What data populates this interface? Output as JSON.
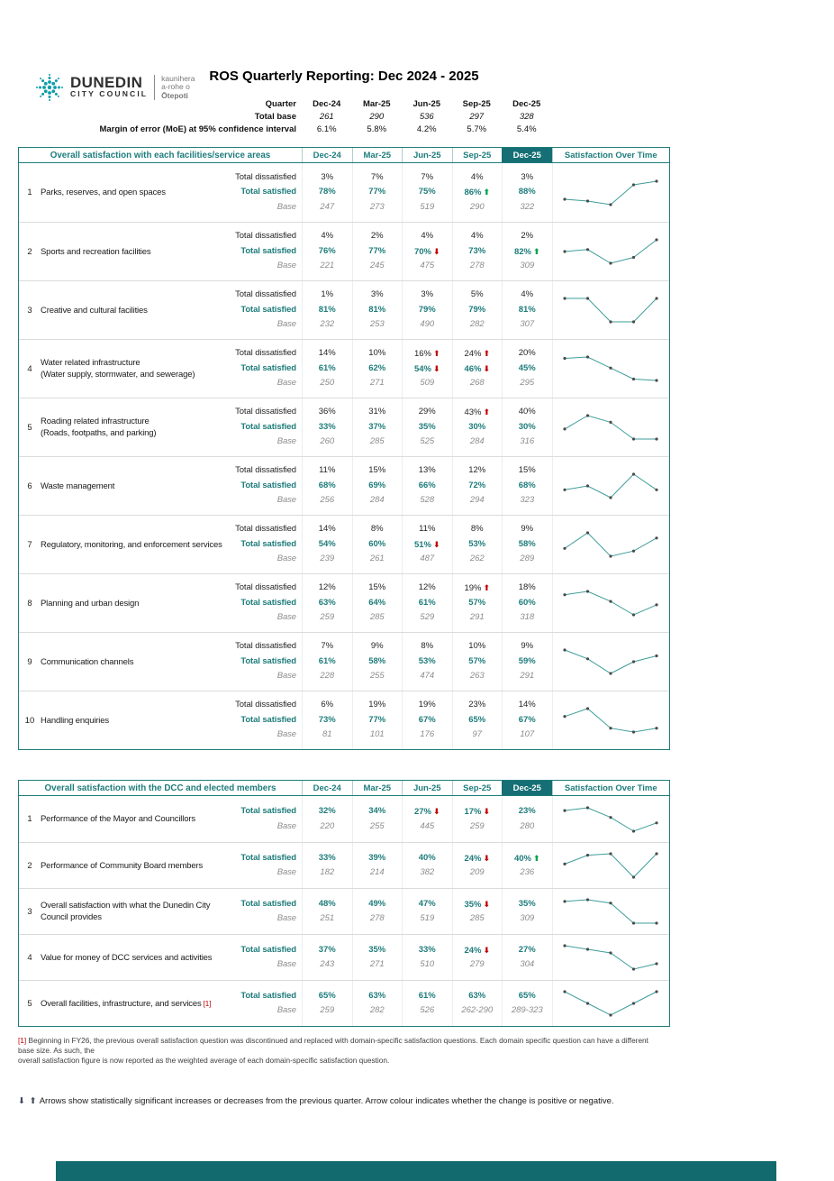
{
  "meta": {
    "title": "ROS Quarterly Reporting: Dec 2024 - 2025"
  },
  "logo": {
    "name_line1": "DUNEDIN",
    "name_line2": "CITY COUNCIL",
    "maori_line1": "kaunihera",
    "maori_line2": "a-rohe o",
    "maori_line3": "Ōtepoti"
  },
  "header_table": {
    "quarter_label": "Quarter",
    "total_base_label": "Total base",
    "moe_label": "Margin of error (MoE) at 95% confidence interval",
    "quarters": [
      "Dec-24",
      "Mar-25",
      "Jun-25",
      "Sep-25",
      "Dec-25"
    ],
    "total_base": [
      "261",
      "290",
      "536",
      "297",
      "328"
    ],
    "moe": [
      "6.1%",
      "5.8%",
      "4.2%",
      "5.7%",
      "5.4%"
    ]
  },
  "labels": {
    "dissatisfied": "Total dissatisfied",
    "satisfied": "Total satisfied",
    "base": "Base",
    "spark_header": "Satisfaction Over Time"
  },
  "table1": {
    "header": "Overall satisfaction with each facilities/service areas",
    "rows": [
      {
        "num": "1",
        "name_lines": [
          "Parks, reserves, and open spaces"
        ],
        "dissatisfied": [
          "3%",
          "7%",
          "7%",
          "4%",
          "3%"
        ],
        "satisfied": [
          "78%",
          "77%",
          "75%",
          "86%",
          "88%"
        ],
        "sat_arrows": [
          null,
          null,
          null,
          "up-green",
          null
        ],
        "base": [
          "247",
          "273",
          "519",
          "290",
          "322"
        ],
        "spark": [
          78,
          77,
          75,
          86,
          88
        ]
      },
      {
        "num": "2",
        "name_lines": [
          "Sports and recreation facilities"
        ],
        "dissatisfied": [
          "4%",
          "2%",
          "4%",
          "4%",
          "2%"
        ],
        "satisfied": [
          "76%",
          "77%",
          "70%",
          "73%",
          "82%"
        ],
        "sat_arrows": [
          null,
          null,
          "down-red",
          null,
          "up-green"
        ],
        "base": [
          "221",
          "245",
          "475",
          "278",
          "309"
        ],
        "spark": [
          76,
          77,
          70,
          73,
          82
        ]
      },
      {
        "num": "3",
        "name_lines": [
          "Creative and cultural facilities"
        ],
        "dissatisfied": [
          "1%",
          "3%",
          "3%",
          "5%",
          "4%"
        ],
        "satisfied": [
          "81%",
          "81%",
          "79%",
          "79%",
          "81%"
        ],
        "base": [
          "232",
          "253",
          "490",
          "282",
          "307"
        ],
        "spark": [
          81,
          81,
          79,
          79,
          81
        ]
      },
      {
        "num": "4",
        "name_lines": [
          "Water related infrastructure",
          "(Water supply, stormwater, and sewerage)"
        ],
        "dissatisfied": [
          "14%",
          "10%",
          "16%",
          "24%",
          "20%"
        ],
        "dis_arrows": [
          null,
          null,
          "up-red",
          "up-red",
          null
        ],
        "satisfied": [
          "61%",
          "62%",
          "54%",
          "46%",
          "45%"
        ],
        "sat_arrows": [
          null,
          null,
          "down-red",
          "down-red",
          null
        ],
        "base": [
          "250",
          "271",
          "509",
          "268",
          "295"
        ],
        "spark": [
          61,
          62,
          54,
          46,
          45
        ]
      },
      {
        "num": "5",
        "name_lines": [
          "Roading related infrastructure",
          "(Roads, footpaths, and parking)"
        ],
        "dissatisfied": [
          "36%",
          "31%",
          "29%",
          "43%",
          "40%"
        ],
        "dis_arrows": [
          null,
          null,
          null,
          "up-red",
          null
        ],
        "satisfied": [
          "33%",
          "37%",
          "35%",
          "30%",
          "30%"
        ],
        "base": [
          "260",
          "285",
          "525",
          "284",
          "316"
        ],
        "spark": [
          33,
          37,
          35,
          30,
          30
        ]
      },
      {
        "num": "6",
        "name_lines": [
          "Waste management"
        ],
        "dissatisfied": [
          "11%",
          "15%",
          "13%",
          "12%",
          "15%"
        ],
        "satisfied": [
          "68%",
          "69%",
          "66%",
          "72%",
          "68%"
        ],
        "base": [
          "256",
          "284",
          "528",
          "294",
          "323"
        ],
        "spark": [
          68,
          69,
          66,
          72,
          68
        ]
      },
      {
        "num": "7",
        "name_lines": [
          "Regulatory, monitoring, and enforcement services"
        ],
        "dissatisfied": [
          "14%",
          "8%",
          "11%",
          "8%",
          "9%"
        ],
        "satisfied": [
          "54%",
          "60%",
          "51%",
          "53%",
          "58%"
        ],
        "sat_arrows": [
          null,
          null,
          "down-red",
          null,
          null
        ],
        "base": [
          "239",
          "261",
          "487",
          "262",
          "289"
        ],
        "spark": [
          54,
          60,
          51,
          53,
          58
        ]
      },
      {
        "num": "8",
        "name_lines": [
          "Planning and urban design"
        ],
        "dissatisfied": [
          "12%",
          "15%",
          "12%",
          "19%",
          "18%"
        ],
        "dis_arrows": [
          null,
          null,
          null,
          "up-red",
          null
        ],
        "satisfied": [
          "63%",
          "64%",
          "61%",
          "57%",
          "60%"
        ],
        "base": [
          "259",
          "285",
          "529",
          "291",
          "318"
        ],
        "spark": [
          63,
          64,
          61,
          57,
          60
        ]
      },
      {
        "num": "9",
        "name_lines": [
          "Communication channels"
        ],
        "dissatisfied": [
          "7%",
          "9%",
          "8%",
          "10%",
          "9%"
        ],
        "satisfied": [
          "61%",
          "58%",
          "53%",
          "57%",
          "59%"
        ],
        "base": [
          "228",
          "255",
          "474",
          "263",
          "291"
        ],
        "spark": [
          61,
          58,
          53,
          57,
          59
        ]
      },
      {
        "num": "10",
        "name_lines": [
          "Handling enquiries"
        ],
        "dissatisfied": [
          "6%",
          "19%",
          "19%",
          "23%",
          "14%"
        ],
        "satisfied": [
          "73%",
          "77%",
          "67%",
          "65%",
          "67%"
        ],
        "base": [
          "81",
          "101",
          "176",
          "97",
          "107"
        ],
        "spark": [
          73,
          77,
          67,
          65,
          67
        ]
      }
    ]
  },
  "table2": {
    "header": "Overall satisfaction with the DCC and elected members",
    "rows": [
      {
        "num": "1",
        "name_lines": [
          "Performance of the Mayor and Councillors"
        ],
        "satisfied": [
          "32%",
          "34%",
          "27%",
          "17%",
          "23%"
        ],
        "sat_arrows": [
          null,
          null,
          "down-red",
          "down-red",
          null
        ],
        "base": [
          "220",
          "255",
          "445",
          "259",
          "280"
        ],
        "spark": [
          32,
          34,
          27,
          17,
          23
        ]
      },
      {
        "num": "2",
        "name_lines": [
          "Performance of Community Board members"
        ],
        "satisfied": [
          "33%",
          "39%",
          "40%",
          "24%",
          "40%"
        ],
        "sat_arrows": [
          null,
          null,
          null,
          "down-red",
          "up-green"
        ],
        "base": [
          "182",
          "214",
          "382",
          "209",
          "236"
        ],
        "spark": [
          33,
          39,
          40,
          24,
          40
        ]
      },
      {
        "num": "3",
        "name_lines": [
          "Overall satisfaction with what the Dunedin City",
          "Council provides"
        ],
        "satisfied": [
          "48%",
          "49%",
          "47%",
          "35%",
          "35%"
        ],
        "sat_arrows": [
          null,
          null,
          null,
          "down-red",
          null
        ],
        "base": [
          "251",
          "278",
          "519",
          "285",
          "309"
        ],
        "spark": [
          48,
          49,
          47,
          35,
          35
        ]
      },
      {
        "num": "4",
        "name_lines": [
          "Value for money of DCC services and activities"
        ],
        "satisfied": [
          "37%",
          "35%",
          "33%",
          "24%",
          "27%"
        ],
        "sat_arrows": [
          null,
          null,
          null,
          "down-red",
          null
        ],
        "base": [
          "243",
          "271",
          "510",
          "279",
          "304"
        ],
        "spark": [
          37,
          35,
          33,
          24,
          27
        ]
      },
      {
        "num": "5",
        "name_lines": [
          "Overall facilities, infrastructure, and services"
        ],
        "note": "[1]",
        "satisfied": [
          "65%",
          "63%",
          "61%",
          "63%",
          "65%"
        ],
        "base": [
          "259",
          "282",
          "526",
          "262-290",
          "289-323"
        ],
        "spark": [
          65,
          63,
          61,
          63,
          65
        ]
      }
    ]
  },
  "footnote": {
    "marker": "[1]",
    "line1": "Beginning in FY26, the previous overall satisfaction question was discontinued and replaced with domain-specific satisfaction questions. Each domain specific question can have a different base size. As such, the",
    "line2": "overall satisfaction figure is now reported as the weighted average of each domain-specific satisfaction question."
  },
  "legend": {
    "arrows": "⬇ ⬆",
    "text": "Arrows show statistically significant increases or decreases from the previous quarter. Arrow colour indicates whether the change is positive or negative."
  },
  "colors": {
    "teal": "#1e7c7b",
    "teal_dark": "#156f74",
    "green": "#00a14b",
    "red": "#c00000",
    "logo_teal": "#0b9da8"
  }
}
